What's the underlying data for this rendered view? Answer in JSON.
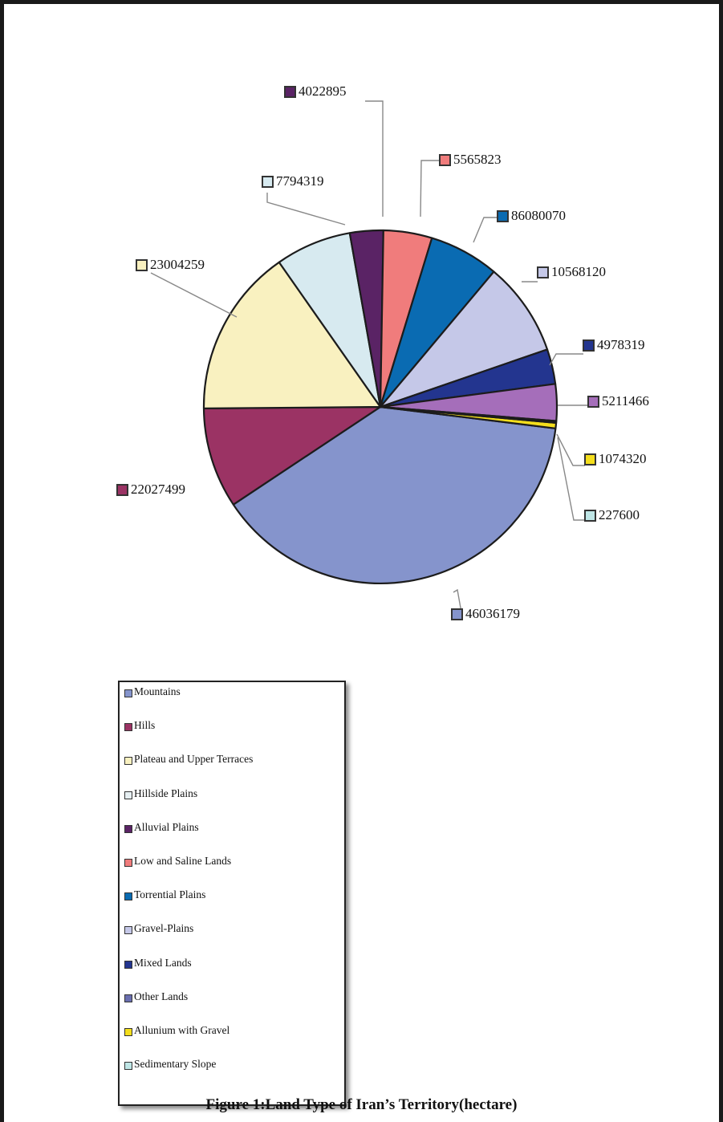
{
  "chart_data": {
    "type": "pie",
    "title": "Figure 1:Land Type of Iran’s Territory(hectare)",
    "slices": [
      {
        "name": "Mountains",
        "value": 46036179,
        "label": "46036179",
        "color": "#8594cc"
      },
      {
        "name": "Hills",
        "value": 22027499,
        "label": "22027499",
        "color": "#9b3364"
      },
      {
        "name": "Plateau and Upper Terraces",
        "value": 23004259,
        "label": "23004259",
        "color": "#f9f1c0"
      },
      {
        "name": "Hillside Plains",
        "value": 7794319,
        "label": "7794319",
        "color": "#d7eaf0"
      },
      {
        "name": "Alluvial Plains",
        "value": 4022895,
        "label": "4022895",
        "color": "#5a2365"
      },
      {
        "name": "Low and Saline Lands",
        "value": 5565823,
        "label": "5565823",
        "color": "#f07c7c"
      },
      {
        "name": "Torrential Plains",
        "value": 86080070,
        "label": "86080070",
        "color": "#0a6bb2"
      },
      {
        "name": "Gravel-Plains",
        "value": 10568120,
        "label": "10568120",
        "color": "#c5c8e8"
      },
      {
        "name": "Mixed Lands",
        "value": 4978319,
        "label": "4978319",
        "color": "#23358f"
      },
      {
        "name": "Other Lands",
        "value": 5211466,
        "label": "5211466",
        "color": "#a56eba"
      },
      {
        "name": "Allunium with Gravel",
        "value": 1074320,
        "label": "1074320",
        "color": "#f4de1c"
      },
      {
        "name": "Sedimentary Slope",
        "value": 227600,
        "label": "227600",
        "color": "#bfe6e6"
      }
    ],
    "legend_position": "bottom-left"
  },
  "legend": {
    "items": [
      {
        "label": "Mountains",
        "color": "#8594cc"
      },
      {
        "label": "Hills",
        "color": "#9b3364"
      },
      {
        "label": "Plateau and Upper Terraces",
        "color": "#f9f1c0"
      },
      {
        "label": "Hillside Plains",
        "color": "#e6eff2"
      },
      {
        "label": "Alluvial Plains",
        "color": "#5a2365"
      },
      {
        "label": "Low and Saline Lands",
        "color": "#f07c7c"
      },
      {
        "label": "Torrential Plains",
        "color": "#0a6bb2"
      },
      {
        "label": "Gravel-Plains",
        "color": "#c5c8e8"
      },
      {
        "label": "Mixed Lands",
        "color": "#23358f"
      },
      {
        "label": "Other Lands",
        "color": "#6a6fb0"
      },
      {
        "label": "Allunium with Gravel",
        "color": "#f4de1c"
      },
      {
        "label": "Sedimentary Slope",
        "color": "#bfe6e6"
      }
    ]
  },
  "caption": "Figure 1:Land Type of Iran’s Territory(hectare)"
}
